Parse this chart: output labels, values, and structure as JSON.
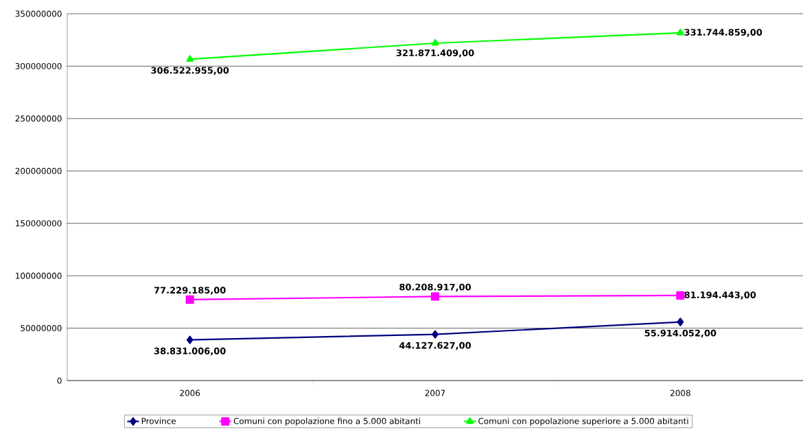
{
  "chart_data": {
    "type": "line",
    "categories": [
      "2006",
      "2007",
      "2008"
    ],
    "ylim": [
      0,
      350000000
    ],
    "yticks": [
      0,
      50000000,
      100000000,
      150000000,
      200000000,
      250000000,
      300000000,
      350000000
    ],
    "grid": "y",
    "legend": "bottom",
    "series": [
      {
        "name": "Province",
        "color": "#000080",
        "marker": "diamond",
        "values": [
          38831006,
          44127627,
          55914052
        ],
        "value_labels": [
          "38.831.006,00",
          "44.127.627,00",
          "55.914.052,00"
        ]
      },
      {
        "name": "Comuni con popolazione fino a 5.000 abitanti",
        "color": "#ff00ff",
        "marker": "square",
        "values": [
          77229185,
          80208917,
          81194443
        ],
        "value_labels": [
          "77.229.185,00",
          "80.208.917,00",
          "81.194.443,00"
        ]
      },
      {
        "name": "Comuni con popolazione superiore a 5.000 abitanti",
        "color": "#00ff00",
        "marker": "triangle",
        "values": [
          306522955,
          321871409,
          331744859
        ],
        "value_labels": [
          "306.522.955,00",
          "321.871.409,00",
          "331.744.859,00"
        ]
      }
    ]
  }
}
